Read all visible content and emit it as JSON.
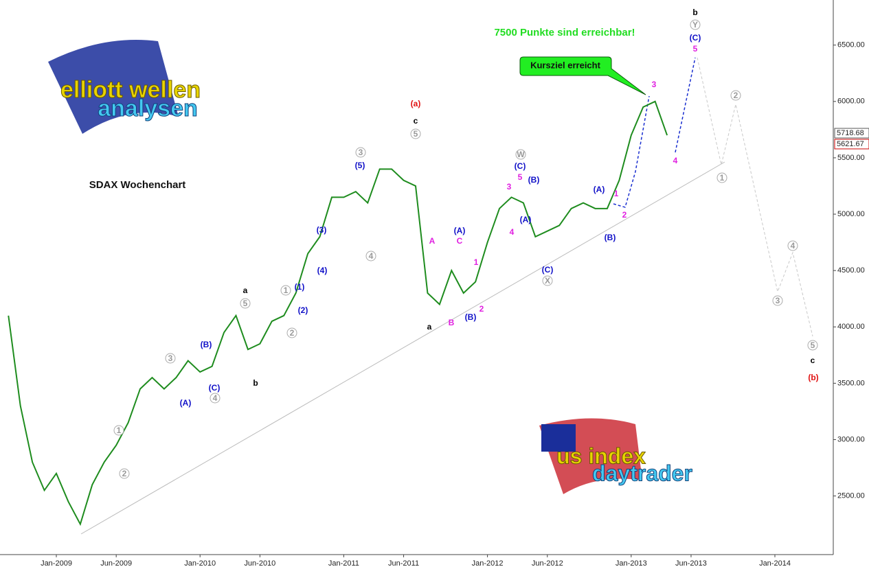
{
  "chart_data": {
    "type": "line",
    "title": "SDAX Wochenchart",
    "headline": "7500 Punkte sind erreichbar!",
    "callout": "Kursziel erreicht",
    "logos": [
      "elliott wellen",
      "analysen",
      "us index",
      "daytrader"
    ],
    "color": "#1e8c1e",
    "categories": [
      null,
      null,
      null,
      null,
      "Jan-2009",
      null,
      null,
      null,
      null,
      "Jun-2009",
      null,
      null,
      null,
      null,
      null,
      null,
      "Jan-2010",
      null,
      null,
      null,
      null,
      "Jun-2010",
      null,
      null,
      null,
      null,
      null,
      null,
      "Jan-2011",
      null,
      null,
      null,
      null,
      "Jun-2011",
      null,
      null,
      null,
      null,
      null,
      null,
      "Jan-2012",
      null,
      null,
      null,
      null,
      "Jun-2012",
      null,
      null,
      null,
      null,
      null,
      null,
      "Jan-2013",
      null,
      null,
      null,
      null,
      "Jun-2013",
      null,
      null,
      null,
      null,
      null,
      null,
      "Jan-2014",
      null,
      null,
      null
    ],
    "values": [
      4100,
      3300,
      2800,
      2550,
      2700,
      2450,
      2250,
      2600,
      2800,
      2950,
      3150,
      3450,
      3550,
      3450,
      3550,
      3700,
      3600,
      3650,
      3950,
      4100,
      3800,
      3850,
      4050,
      4100,
      4300,
      4650,
      4800,
      5150,
      5150,
      5200,
      5100,
      5400,
      5400,
      5300,
      5250,
      4300,
      4200,
      4500,
      4300,
      4400,
      4750,
      5050,
      5150,
      5100,
      4800,
      4850,
      4900,
      5050,
      5100,
      5050,
      5050,
      5300,
      5700,
      5950,
      6000,
      5700,
      null,
      null,
      null,
      null,
      null,
      null,
      null,
      null,
      null,
      null,
      null,
      null
    ],
    "ylim": [
      1980,
      6900
    ],
    "yticks": [
      {
        "value": 2500,
        "label": "2500.00"
      },
      {
        "value": 3000,
        "label": "3000.00"
      },
      {
        "value": 3500,
        "label": "3500.00"
      },
      {
        "value": 4000,
        "label": "4000.00"
      },
      {
        "value": 4500,
        "label": "4500.00"
      },
      {
        "value": 5000,
        "label": "5000.00"
      },
      {
        "value": 5500,
        "label": "5500.00"
      },
      {
        "value": 6000,
        "label": "6000.00"
      },
      {
        "value": 6500,
        "label": "6500.00"
      }
    ],
    "price_markers": [
      5718.68,
      5621.67
    ],
    "annotations": [
      "a",
      "b",
      "c",
      "a",
      "b",
      "c",
      "(a)",
      "(b)",
      "(B)",
      "(C)",
      "(A)",
      "(1)",
      "(2)",
      "(3)",
      "(4)",
      "(5)",
      "(A)",
      "(B)",
      "(C)",
      "(B)",
      "(A)",
      "(C)",
      "(A)",
      "(B)",
      "(C)",
      "A",
      "C",
      "B",
      "1",
      "2",
      "3",
      "5",
      "4",
      "1",
      "2",
      "3",
      "4",
      "5",
      "1",
      "2",
      "3",
      "4",
      "5",
      "1",
      "2",
      "3",
      "4",
      "5",
      "W",
      "X",
      "Y",
      "1",
      "2",
      "3",
      "4",
      "5"
    ]
  }
}
